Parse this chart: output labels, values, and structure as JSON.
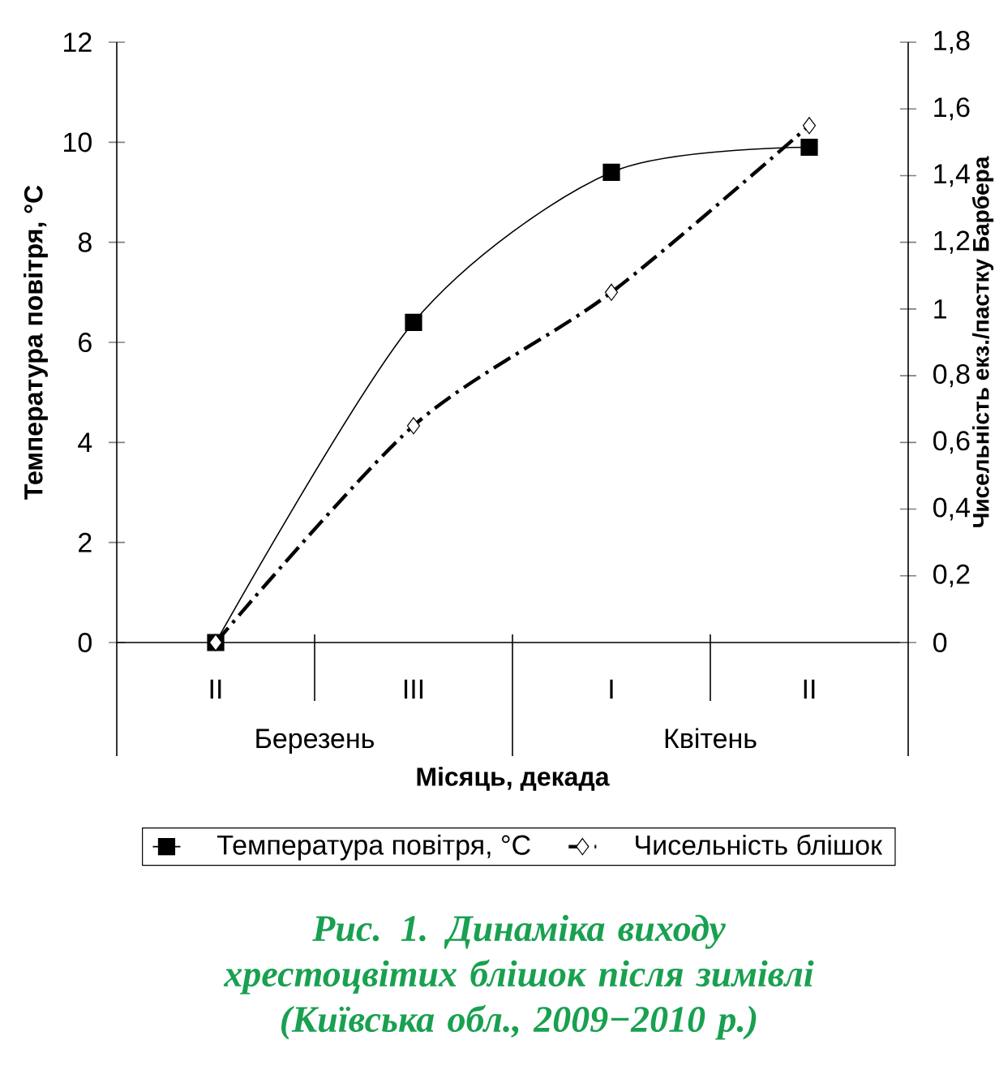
{
  "chart_data": {
    "type": "line",
    "title": "Рис. 1. Динаміка виходу хрестоцвітих блішок після зимівлі (Київська обл., 2009−2010 р.)",
    "xlabel": "Місяць, декада",
    "ylabel": "Температура повітря, °С",
    "y2label": "Чисельність екз./пастку Барбера",
    "categories": [
      "II",
      "III",
      "I",
      "II"
    ],
    "annotations": [
      "Березень",
      "Квітень"
    ],
    "series": [
      {
        "name": "Температура повітря, °С",
        "color": "#000000",
        "values": [
          0,
          6.4,
          9.4,
          9.9
        ],
        "marker": "square",
        "line_style": "solid"
      },
      {
        "name": "Чисельність блішок",
        "color": "#000000",
        "values": [
          0,
          0.65,
          1.05,
          1.55
        ],
        "axis": "y2",
        "marker": "diamond",
        "line_style": "dashdot"
      }
    ],
    "ylim": [
      0,
      12
    ],
    "yticks": [
      0,
      2,
      4,
      6,
      8,
      10,
      12
    ],
    "y2lim": [
      0,
      1.8
    ],
    "y2ticks": [
      0,
      {
        "value": 0.2,
        "label": "0,2"
      },
      {
        "value": 0.4,
        "label": "0,4"
      },
      {
        "value": 0.6,
        "label": "0,6"
      },
      {
        "value": 0.8,
        "label": "0,8"
      },
      1,
      {
        "value": 1.2,
        "label": "1,2"
      },
      {
        "value": 1.4,
        "label": "1,4"
      },
      {
        "value": 1.6,
        "label": "1,6"
      },
      {
        "value": 1.8,
        "label": "1,8"
      }
    ],
    "grid": false,
    "legend": "bottom"
  }
}
